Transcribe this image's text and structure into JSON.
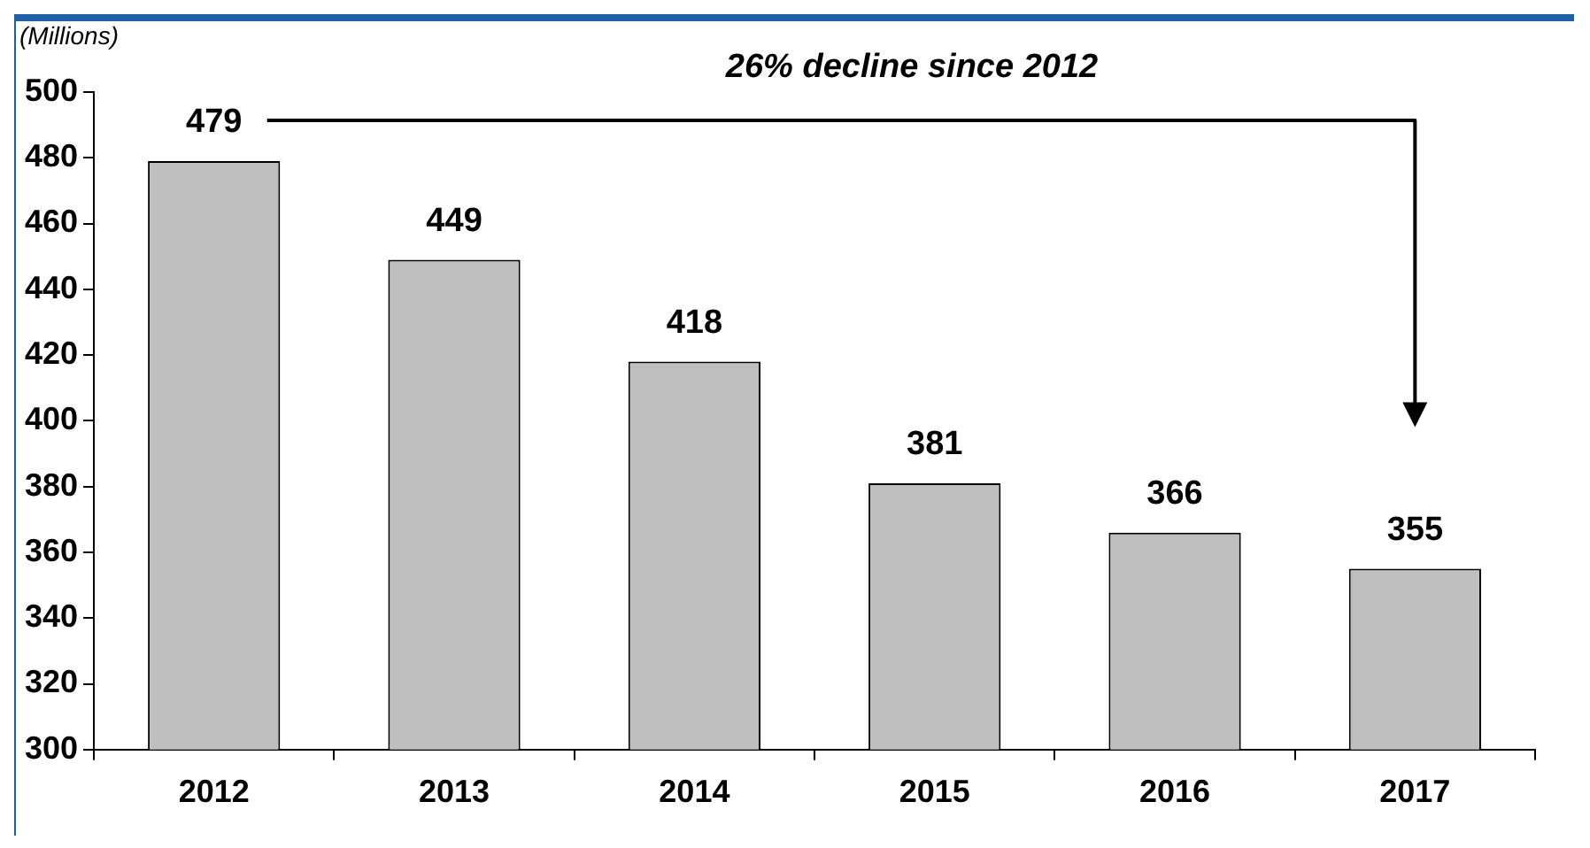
{
  "chart_data": {
    "type": "bar",
    "ylabel": "(Millions)",
    "categories": [
      "2012",
      "2013",
      "2014",
      "2015",
      "2016",
      "2017"
    ],
    "values": [
      479,
      449,
      418,
      381,
      366,
      355
    ],
    "color": "#bfbfbf",
    "ylim": [
      300,
      500
    ],
    "yticks": [
      300,
      320,
      340,
      360,
      380,
      400,
      420,
      440,
      460,
      480,
      500
    ],
    "grid": false,
    "data_labels": true,
    "legend": false,
    "annotations": [
      "26% decline since 2012"
    ]
  }
}
